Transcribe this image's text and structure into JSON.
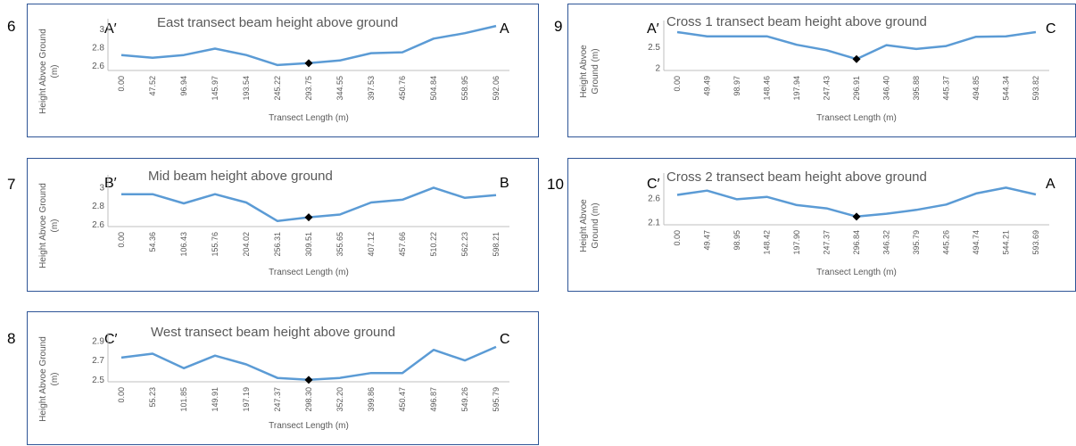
{
  "chart_data": [
    {
      "type": "line",
      "figure_number": "6",
      "title": "East transect beam height above ground",
      "xlabel": "Transect Length (m)",
      "ylabel": [
        "Height Abvoe Ground",
        "(m)"
      ],
      "start_label": "A′",
      "end_label": "A",
      "yticks": [
        "3",
        "2.8",
        "2.6"
      ],
      "ylim": [
        2.55,
        3.08
      ],
      "categories": [
        "0.00",
        "47.52",
        "96.94",
        "145.97",
        "193.54",
        "245.22",
        "293.75",
        "344.55",
        "397.53",
        "450.76",
        "504.84",
        "558.95",
        "592.06"
      ],
      "values": [
        2.72,
        2.69,
        2.72,
        2.79,
        2.72,
        2.61,
        2.63,
        2.66,
        2.74,
        2.75,
        2.9,
        2.96,
        3.04
      ],
      "marker_category": "293.75"
    },
    {
      "type": "line",
      "figure_number": "7",
      "title": "Mid beam height above ground",
      "xlabel": "Transect Length (m)",
      "ylabel": [
        "Height Abvoe Ground",
        "(m)"
      ],
      "start_label": "B′",
      "end_label": "B",
      "yticks": [
        "3",
        "2.8",
        "2.6"
      ],
      "ylim": [
        2.58,
        3.1
      ],
      "categories": [
        "0.00",
        "54.36",
        "106.43",
        "155.76",
        "204.02",
        "256.31",
        "309.51",
        "355.65",
        "407.12",
        "457.66",
        "510.22",
        "562.23",
        "598.21"
      ],
      "values": [
        2.93,
        2.93,
        2.83,
        2.93,
        2.84,
        2.64,
        2.68,
        2.71,
        2.84,
        2.87,
        3.0,
        2.89,
        2.92
      ],
      "marker_category": "309.51"
    },
    {
      "type": "line",
      "figure_number": "8",
      "title": "West transect beam height above ground",
      "xlabel": "Transect Length (m)",
      "ylabel": [
        "Height Abvoe Ground",
        "(m)"
      ],
      "start_label": "C′",
      "end_label": "C",
      "yticks": [
        "2.9",
        "2.7",
        "2.5"
      ],
      "ylim": [
        2.48,
        2.95
      ],
      "categories": [
        "0.00",
        "55.23",
        "101.85",
        "149.91",
        "197.19",
        "247.37",
        "298.30",
        "352.20",
        "399.86",
        "450.47",
        "496.87",
        "549.26",
        "595.79"
      ],
      "values": [
        2.73,
        2.77,
        2.62,
        2.75,
        2.66,
        2.52,
        2.5,
        2.52,
        2.57,
        2.57,
        2.81,
        2.7,
        2.84
      ],
      "marker_category": "298.30"
    },
    {
      "type": "line",
      "figure_number": "9",
      "title": "Cross 1 transect beam height above ground",
      "xlabel": "Transect Length (m)",
      "ylabel": [
        "Height Abvoe",
        "Ground (m)"
      ],
      "start_label": "A′",
      "end_label": "C",
      "yticks": [
        "2.5",
        "2"
      ],
      "ylim": [
        1.95,
        3.05
      ],
      "categories": [
        "0.00",
        "49.49",
        "98.97",
        "148.46",
        "197.94",
        "247.43",
        "296.91",
        "346.40",
        "395.88",
        "445.37",
        "494.85",
        "544.34",
        "593.82"
      ],
      "values": [
        2.86,
        2.76,
        2.76,
        2.76,
        2.56,
        2.43,
        2.22,
        2.55,
        2.46,
        2.53,
        2.75,
        2.76,
        2.86
      ],
      "marker_category": "296.91"
    },
    {
      "type": "line",
      "figure_number": "10",
      "title": "Cross 2 transect beam height above ground",
      "xlabel": "Transect Length (m)",
      "ylabel": [
        "Height Abvoe",
        "Ground (m)"
      ],
      "start_label": "C′",
      "end_label": "A",
      "yticks": [
        "2.6",
        "2.1"
      ],
      "ylim": [
        2.05,
        3.05
      ],
      "categories": [
        "0.00",
        "49.47",
        "98.95",
        "148.42",
        "197.90",
        "247.37",
        "296.84",
        "346.32",
        "395.79",
        "445.26",
        "494.74",
        "544.21",
        "593.69"
      ],
      "values": [
        2.67,
        2.76,
        2.58,
        2.63,
        2.46,
        2.39,
        2.22,
        2.28,
        2.36,
        2.47,
        2.7,
        2.82,
        2.68
      ],
      "marker_category": "296.84"
    }
  ],
  "colors": {
    "line": "#5b9bd5",
    "marker": "#000000",
    "border": "#2f5597",
    "axis": "#bfbfbf",
    "text": "#595959"
  }
}
